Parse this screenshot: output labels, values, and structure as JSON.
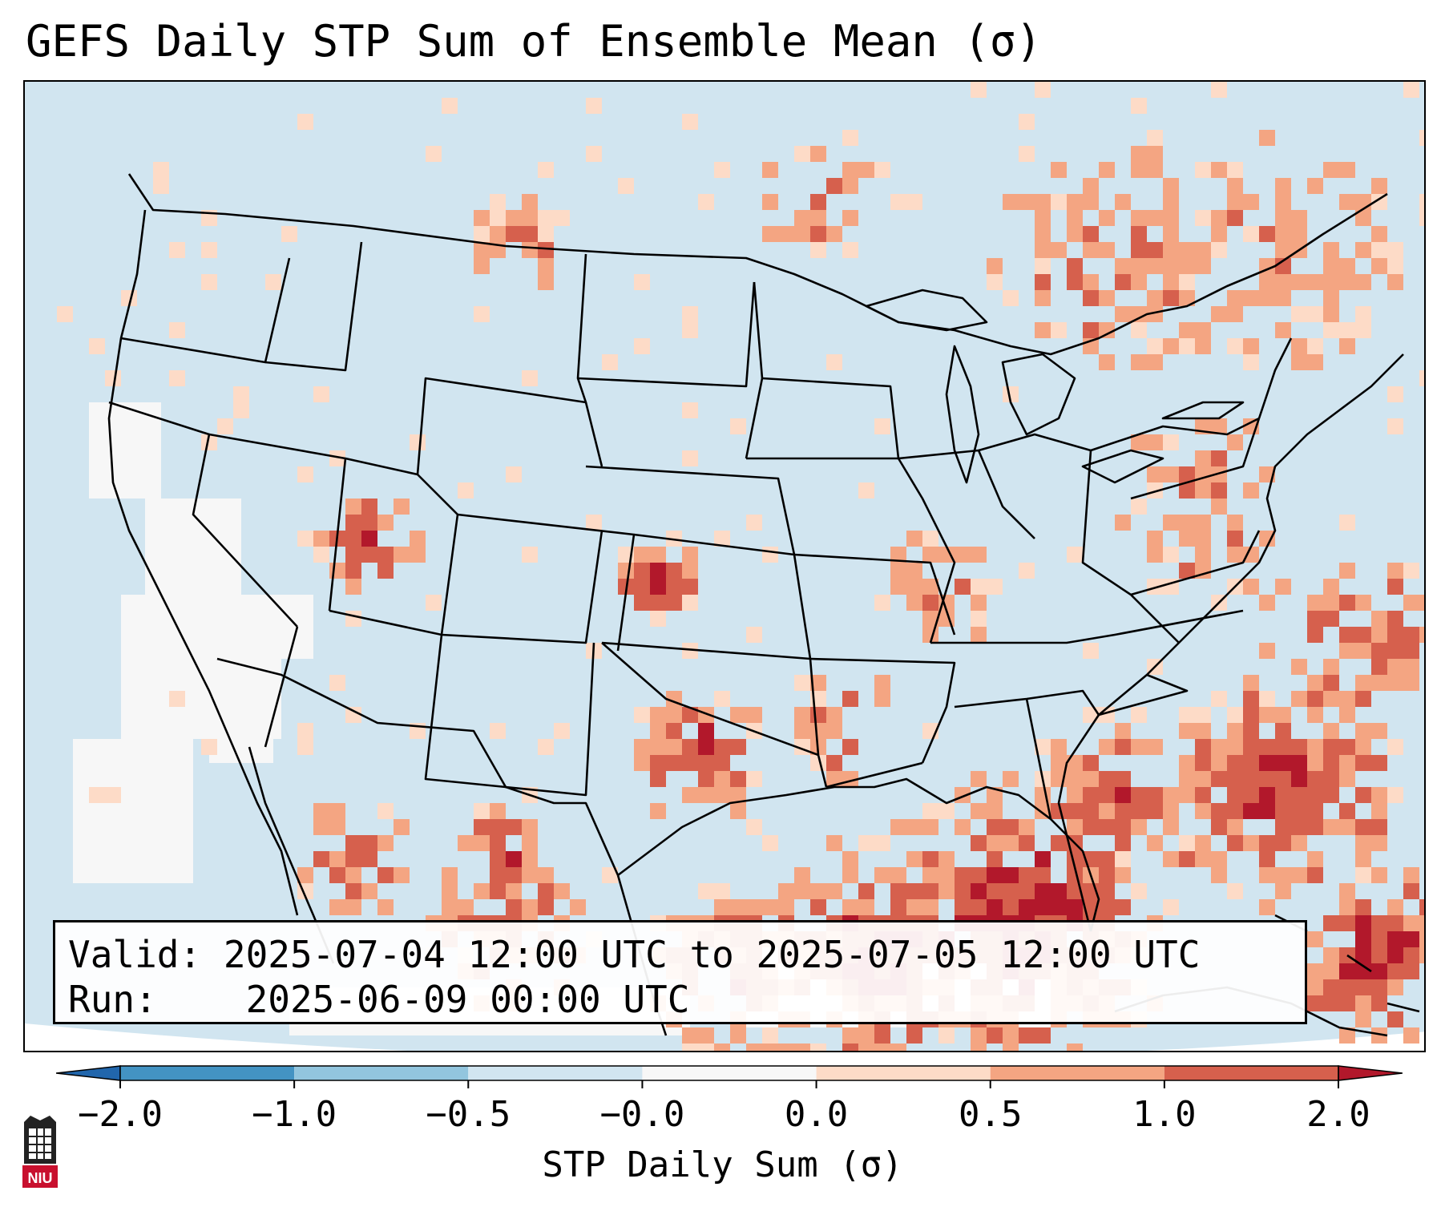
{
  "title": "GEFS Daily STP Sum of Ensemble Mean (σ)",
  "info": {
    "valid_label": "Valid:",
    "valid_value": "2025-07-04 12:00 UTC to 2025-07-05 12:00 UTC",
    "run_label": "Run:",
    "run_value": "2025-06-09 00:00 UTC"
  },
  "colorbar": {
    "label": "STP Daily Sum (σ)",
    "ticks": [
      "−2.0",
      "−1.0",
      "−0.5",
      "−0.0",
      "0.0",
      "0.5",
      "1.0",
      "2.0"
    ],
    "bins": [
      {
        "from": -2.0,
        "to": -1.0,
        "color": "#4393c3"
      },
      {
        "from": -1.0,
        "to": -0.5,
        "color": "#92c5de"
      },
      {
        "from": -0.5,
        "to": -0.0,
        "color": "#d1e5f0"
      },
      {
        "from": -0.0,
        "to": 0.0,
        "color": "#f7f7f7"
      },
      {
        "from": 0.0,
        "to": 0.5,
        "color": "#fddbc7"
      },
      {
        "from": 0.5,
        "to": 1.0,
        "color": "#f4a582"
      },
      {
        "from": 1.0,
        "to": 2.0,
        "color": "#d6604d"
      }
    ],
    "under_color": "#2166ac",
    "over_color": "#b2182b"
  },
  "map": {
    "ocean_color": "#d1e5f0",
    "outside_color": "#ffffff",
    "border_color": "#000000"
  },
  "logo": {
    "text": "NIU",
    "color": "#c8102e"
  }
}
